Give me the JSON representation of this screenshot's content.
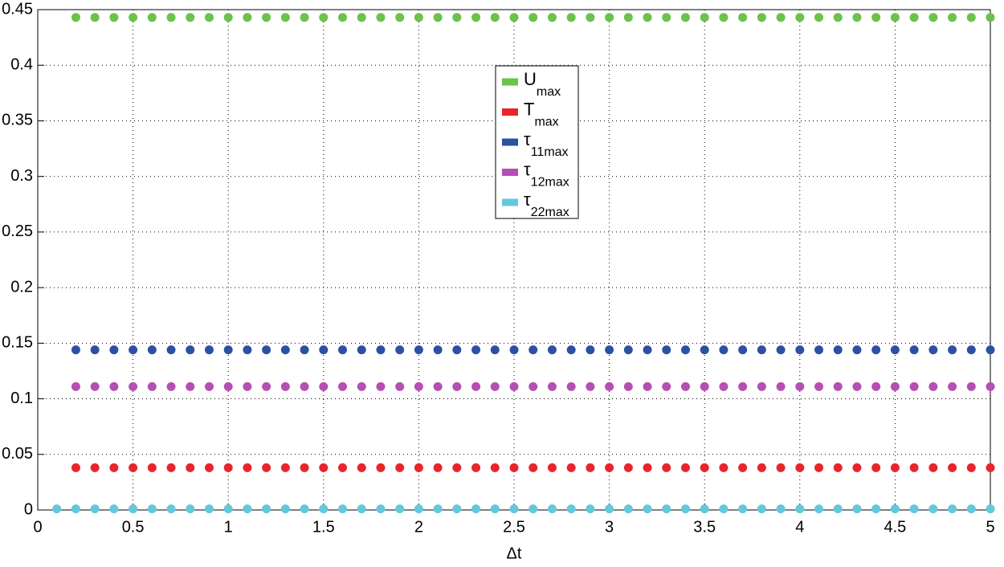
{
  "chart_data": {
    "type": "scatter",
    "x_label": "Δt",
    "x": [
      0.1,
      0.2,
      0.3,
      0.4,
      0.5,
      0.6,
      0.7,
      0.8,
      0.9,
      1,
      1.1,
      1.2,
      1.3,
      1.4,
      1.5,
      1.6,
      1.7,
      1.8,
      1.9,
      2,
      2.1,
      2.2,
      2.3,
      2.4,
      2.5,
      2.6,
      2.7,
      2.8,
      2.9,
      3,
      3.1,
      3.2,
      3.3,
      3.4,
      3.5,
      3.6,
      3.7,
      3.8,
      3.9,
      4,
      4.1,
      4.2,
      4.3,
      4.4,
      4.5,
      4.6,
      4.7,
      4.8,
      4.9,
      5
    ],
    "xlim": [
      0,
      5
    ],
    "xticks": [
      0,
      0.5,
      1,
      1.5,
      2,
      2.5,
      3,
      3.5,
      4,
      4.5,
      5
    ],
    "ylim": [
      0,
      0.45
    ],
    "yticks": [
      0,
      0.05,
      0.1,
      0.15,
      0.2,
      0.25,
      0.3,
      0.35,
      0.4,
      0.45
    ],
    "grid": true,
    "legend": "top-center",
    "series": [
      {
        "name": "U",
        "name_sub": "max",
        "color": "#6cc24a",
        "values": [
          null,
          0.443,
          0.443,
          0.443,
          0.443,
          0.443,
          0.443,
          0.443,
          0.443,
          0.443,
          0.443,
          0.443,
          0.443,
          0.443,
          0.443,
          0.443,
          0.443,
          0.443,
          0.443,
          0.443,
          0.443,
          0.443,
          0.443,
          0.443,
          0.443,
          0.443,
          0.443,
          0.443,
          0.443,
          0.443,
          0.443,
          0.443,
          0.443,
          0.443,
          0.443,
          0.443,
          0.443,
          0.443,
          0.443,
          0.443,
          0.443,
          0.443,
          0.443,
          0.443,
          0.443,
          0.443,
          0.443,
          0.443,
          0.443,
          0.443
        ]
      },
      {
        "name": "T",
        "name_sub": "max",
        "color": "#e8252b",
        "values": [
          null,
          0.038,
          0.038,
          0.038,
          0.038,
          0.038,
          0.038,
          0.038,
          0.038,
          0.038,
          0.038,
          0.038,
          0.038,
          0.038,
          0.038,
          0.038,
          0.038,
          0.038,
          0.038,
          0.038,
          0.038,
          0.038,
          0.038,
          0.038,
          0.038,
          0.038,
          0.038,
          0.038,
          0.038,
          0.038,
          0.038,
          0.038,
          0.038,
          0.038,
          0.038,
          0.038,
          0.038,
          0.038,
          0.038,
          0.038,
          0.038,
          0.038,
          0.038,
          0.038,
          0.038,
          0.038,
          0.038,
          0.038,
          0.038,
          0.038
        ]
      },
      {
        "name": "τ",
        "name_sub": "11max",
        "color": "#2e4fa3",
        "values": [
          null,
          0.144,
          0.144,
          0.144,
          0.144,
          0.144,
          0.144,
          0.144,
          0.144,
          0.144,
          0.144,
          0.144,
          0.144,
          0.144,
          0.144,
          0.144,
          0.144,
          0.144,
          0.144,
          0.144,
          0.144,
          0.144,
          0.144,
          0.144,
          0.144,
          0.144,
          0.144,
          0.144,
          0.144,
          0.144,
          0.144,
          0.144,
          0.144,
          0.144,
          0.144,
          0.144,
          0.144,
          0.144,
          0.144,
          0.144,
          0.144,
          0.144,
          0.144,
          0.144,
          0.144,
          0.144,
          0.144,
          0.144,
          0.144,
          0.144
        ]
      },
      {
        "name": "τ",
        "name_sub": "12max",
        "color": "#b64fb3",
        "values": [
          null,
          0.111,
          0.111,
          0.111,
          0.111,
          0.111,
          0.111,
          0.111,
          0.111,
          0.111,
          0.111,
          0.111,
          0.111,
          0.111,
          0.111,
          0.111,
          0.111,
          0.111,
          0.111,
          0.111,
          0.111,
          0.111,
          0.111,
          0.111,
          0.111,
          0.111,
          0.111,
          0.111,
          0.111,
          0.111,
          0.111,
          0.111,
          0.111,
          0.111,
          0.111,
          0.111,
          0.111,
          0.111,
          0.111,
          0.111,
          0.111,
          0.111,
          0.111,
          0.111,
          0.111,
          0.111,
          0.111,
          0.111,
          0.111,
          0.111
        ]
      },
      {
        "name": "τ",
        "name_sub": "22max",
        "color": "#62c9dc",
        "values": [
          0.001,
          0.001,
          0.001,
          0.001,
          0.001,
          0.001,
          0.001,
          0.001,
          0.001,
          0.001,
          0.001,
          0.001,
          0.001,
          0.001,
          0.001,
          0.001,
          0.001,
          0.001,
          0.001,
          0.001,
          0.001,
          0.001,
          0.001,
          0.001,
          0.001,
          0.001,
          0.001,
          0.001,
          0.001,
          0.001,
          0.001,
          0.001,
          0.001,
          0.001,
          0.001,
          0.001,
          0.001,
          0.001,
          0.001,
          0.001,
          0.001,
          0.001,
          0.001,
          0.001,
          0.001,
          0.001,
          0.001,
          0.001,
          0.001,
          0.001
        ]
      }
    ]
  }
}
